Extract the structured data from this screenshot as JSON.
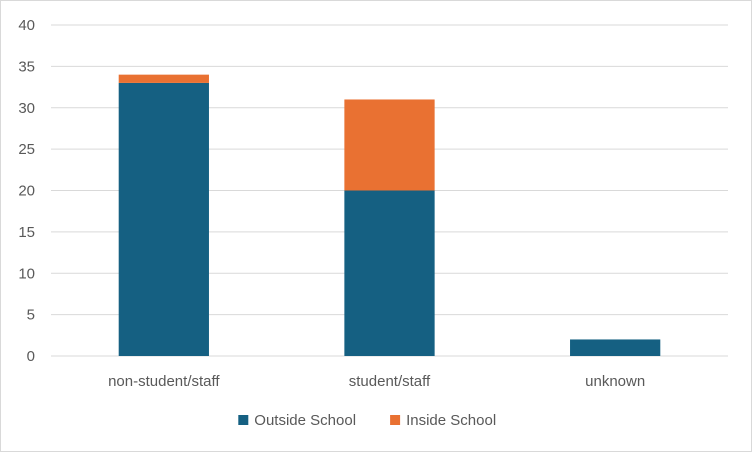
{
  "chart_data": {
    "type": "bar",
    "stacked": true,
    "categories": [
      "non-student/staff",
      "student/staff",
      "unknown"
    ],
    "series": [
      {
        "name": "Outside School",
        "color": "#156082",
        "values": [
          33,
          20,
          2
        ]
      },
      {
        "name": "Inside School",
        "color": "#E97132",
        "values": [
          1,
          11,
          0
        ]
      }
    ],
    "ylim": [
      0,
      40
    ],
    "yticks": [
      0,
      5,
      10,
      15,
      20,
      25,
      30,
      35,
      40
    ],
    "grid": true,
    "legend_position": "bottom"
  }
}
